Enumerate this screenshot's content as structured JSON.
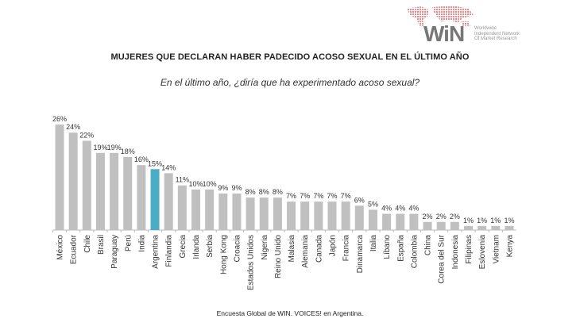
{
  "logo": {
    "name": "WiN",
    "tagline": [
      "Worldwide",
      "Independent Network",
      "Of Market Research"
    ]
  },
  "colors": {
    "bar": "#c0c0c0",
    "highlight": "#4bacc6"
  },
  "footer": "Encuesta Global de WIN. VOICES! en Argentina.",
  "chart_data": {
    "type": "bar",
    "title": "MUJERES QUE DECLARAN HABER PADECIDO ACOSO SEXUAL EN EL ÚLTIMO AÑO",
    "subtitle": "En el último año, ¿diría que ha experimentado acoso sexual?",
    "xlabel": "",
    "ylabel": "",
    "ylim": [
      0,
      26
    ],
    "grid": false,
    "highlight": "Argentina",
    "categories": [
      "México",
      "Ecuador",
      "Chile",
      "Brasil",
      "Paraguay",
      "Perú",
      "India",
      "Argentina",
      "Finlandia",
      "Grecia",
      "Irlanda",
      "Serbia",
      "Hong Kong",
      "Croacia",
      "Estados Unidos",
      "Nigeria",
      "Reino Unido",
      "Malasia",
      "Alemania",
      "Canada",
      "Japón",
      "Francia",
      "Dinamarca",
      "Italia",
      "Líbano",
      "España",
      "Colombia",
      "China",
      "Corea del Sur",
      "Indonesia",
      "Filipinas",
      "Eslovenia",
      "Vietnam",
      "Kenya"
    ],
    "values": [
      26,
      24,
      22,
      19,
      19,
      18,
      16,
      15,
      14,
      11,
      10,
      10,
      9,
      9,
      8,
      8,
      8,
      7,
      7,
      7,
      7,
      7,
      6,
      5,
      4,
      4,
      4,
      2,
      2,
      2,
      1,
      1,
      1,
      1
    ],
    "value_suffix": "%"
  }
}
